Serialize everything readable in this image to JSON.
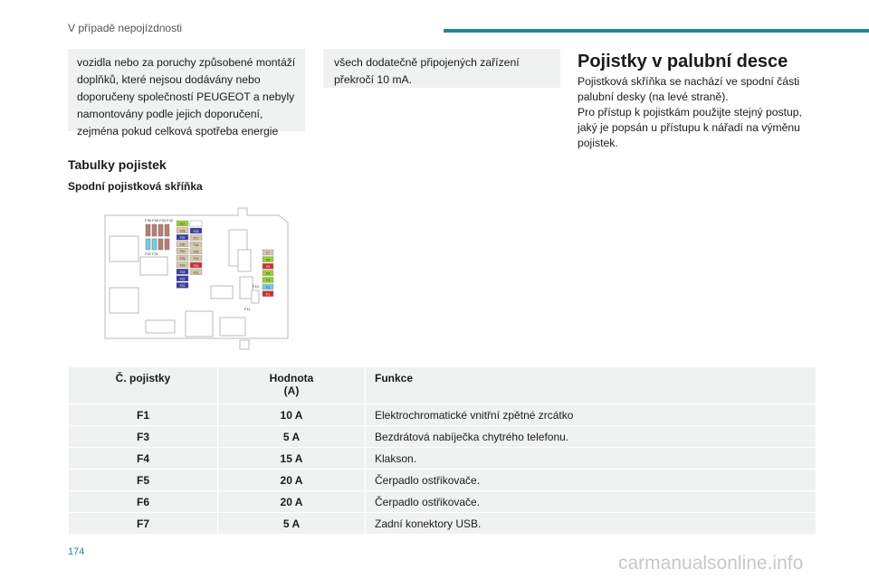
{
  "header": {
    "title": "V případě nepojízdnosti",
    "accent": "#1f8a94"
  },
  "left_box": {
    "lines": [
      "vozidla nebo za poruchy způsobené montáží",
      "doplňků, které nejsou dodávány nebo",
      "doporučeny společností PEUGEOT a nebyly",
      "namontovány podle jejich doporučení,",
      "zejména pokud celková spotřeba energie"
    ]
  },
  "middle_box": {
    "lines": [
      "všech dodatečně připojených zařízení",
      "překročí 10 mA."
    ]
  },
  "section": {
    "title": "Pojistky v palubní desce",
    "lines": [
      "Pojistková skříňka se nachází ve spodní části",
      "palubní desky (na levé straně).",
      "Pro přístup k pojistkám použijte stejný postup,",
      "jaký je popsán u přístupu k nářadí na výměnu",
      "pojistek."
    ]
  },
  "fuse_tables_heading": "Tabulky pojistek",
  "lower_box_heading": "Spodní pojistková skříňka",
  "diagram": {
    "top_labels": "F36 F35 F34 F33",
    "mid_labels": "F32 F31",
    "left_col": [
      "F27",
      "F28",
      "F29",
      "F30",
      "F31",
      "F25",
      "F24",
      "F23",
      "F22",
      "F21"
    ],
    "right_col": [
      "F18",
      "F17",
      "F16",
      "F15",
      "F14",
      "F13",
      "F12"
    ],
    "right_stack": [
      "F7",
      "F6",
      "F5",
      "F4",
      "F3",
      "F2",
      "F1"
    ],
    "label_f10": "F10",
    "label_f11": "F11"
  },
  "table": {
    "headers": {
      "number": "Č. pojistky",
      "value_line1": "Hodnota",
      "value_line2": "(A)",
      "function": "Funkce"
    },
    "rows": [
      {
        "number": "F1",
        "value": "10 A",
        "function": "Elektrochromatické vnitřní zpětné zrcátko"
      },
      {
        "number": "F3",
        "value": "5 A",
        "function": "Bezdrátová nabíječka chytrého telefonu."
      },
      {
        "number": "F4",
        "value": "15 A",
        "function": "Klakson."
      },
      {
        "number": "F5",
        "value": "20 A",
        "function": "Čerpadlo ostřikovače."
      },
      {
        "number": "F6",
        "value": "20 A",
        "function": "Čerpadlo ostřikovače."
      },
      {
        "number": "F7",
        "value": "5 A",
        "function": "Zadní konektory USB."
      }
    ]
  },
  "page_number": "174",
  "watermark": "carmanualsonline.info"
}
